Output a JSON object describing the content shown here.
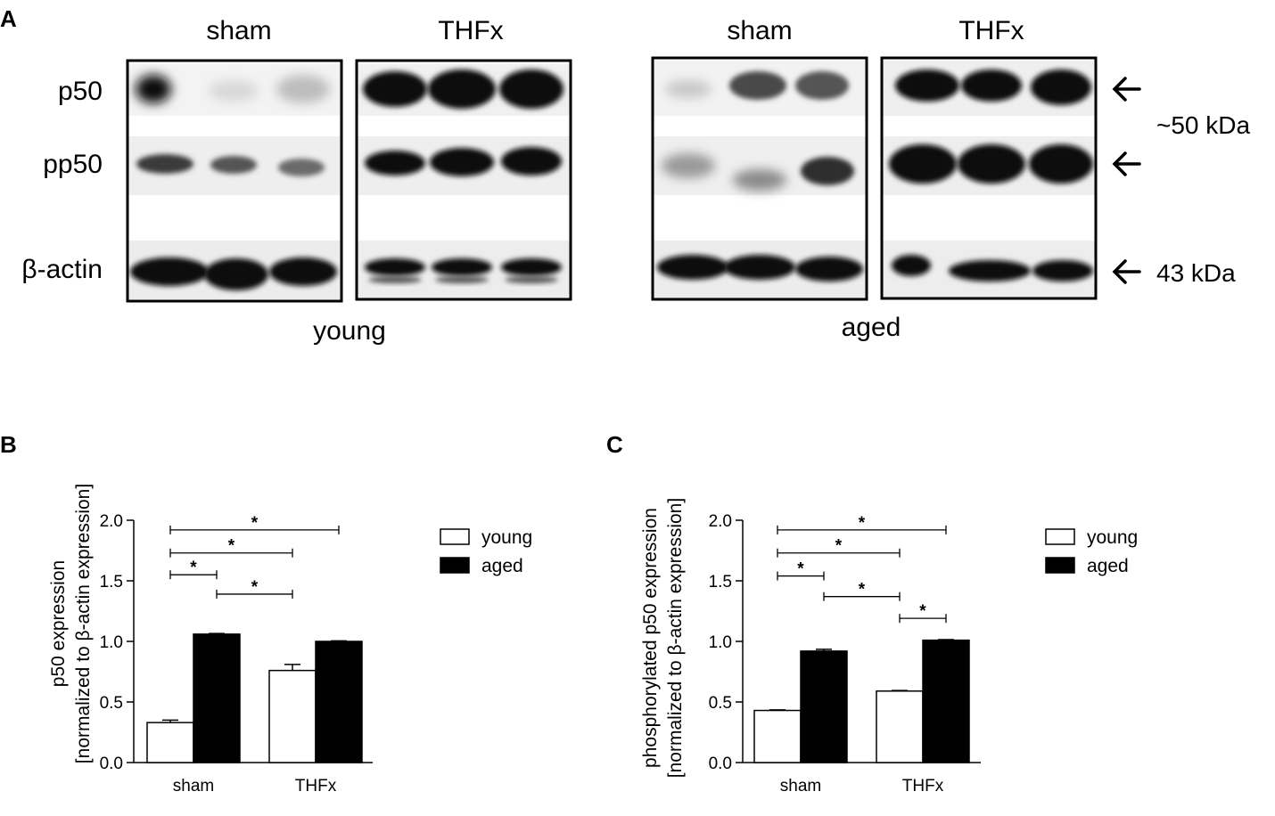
{
  "panel_a": {
    "letter": "A",
    "groups": [
      {
        "condition_labels": [
          "sham",
          "THFx"
        ],
        "cohort": "young"
      },
      {
        "condition_labels": [
          "sham",
          "THFx"
        ],
        "cohort": "aged"
      }
    ],
    "row_labels": [
      "p50",
      "pp50",
      "β-actin"
    ],
    "size_labels": [
      "~50 kDa",
      "43 kDa"
    ]
  },
  "chart_data": [
    {
      "panel": "B",
      "type": "bar",
      "xlabel": "",
      "ylabel_lines": [
        "p50 expression",
        "[normalized to β-actin expression]"
      ],
      "categories": [
        "sham",
        "THFx"
      ],
      "series": [
        {
          "name": "young",
          "values": [
            0.33,
            0.76
          ],
          "errors": [
            0.02,
            0.05
          ],
          "color": "#ffffff"
        },
        {
          "name": "aged",
          "values": [
            1.06,
            1.0
          ],
          "errors": [
            0.005,
            0.005
          ],
          "color": "#000000"
        }
      ],
      "ylim": [
        0,
        2.0
      ],
      "yticks": [
        "0.0",
        "0.5",
        "1.0",
        "1.5",
        "2.0"
      ],
      "legend_position": "top-right",
      "significance": [
        {
          "from": "sham-young",
          "to": "THFx-aged",
          "y": 1.92,
          "label": "*"
        },
        {
          "from": "sham-young",
          "to": "THFx-young",
          "y": 1.73,
          "label": "*"
        },
        {
          "from": "sham-young",
          "to": "sham-aged",
          "y": 1.55,
          "label": "*"
        },
        {
          "from": "sham-aged",
          "to": "THFx-young",
          "y": 1.39,
          "label": "*"
        }
      ]
    },
    {
      "panel": "C",
      "type": "bar",
      "xlabel": "",
      "ylabel_lines": [
        "phosphorylated p50 expression",
        "[normalized to β-actin expression]"
      ],
      "categories": [
        "sham",
        "THFx"
      ],
      "series": [
        {
          "name": "young",
          "values": [
            0.43,
            0.59
          ],
          "errors": [
            0.005,
            0.005
          ],
          "color": "#ffffff"
        },
        {
          "name": "aged",
          "values": [
            0.92,
            1.01
          ],
          "errors": [
            0.015,
            0.005
          ],
          "color": "#000000"
        }
      ],
      "ylim": [
        0,
        2.0
      ],
      "yticks": [
        "0.0",
        "0.5",
        "1.0",
        "1.5",
        "2.0"
      ],
      "legend_position": "top-right",
      "significance": [
        {
          "from": "sham-young",
          "to": "THFx-aged",
          "y": 1.92,
          "label": "*"
        },
        {
          "from": "sham-young",
          "to": "THFx-young",
          "y": 1.73,
          "label": "*"
        },
        {
          "from": "sham-young",
          "to": "sham-aged",
          "y": 1.54,
          "label": "*"
        },
        {
          "from": "sham-aged",
          "to": "THFx-young",
          "y": 1.37,
          "label": "*"
        },
        {
          "from": "THFx-young",
          "to": "THFx-aged",
          "y": 1.19,
          "label": "*"
        }
      ]
    }
  ],
  "panel_b_letter": "B",
  "panel_c_letter": "C"
}
